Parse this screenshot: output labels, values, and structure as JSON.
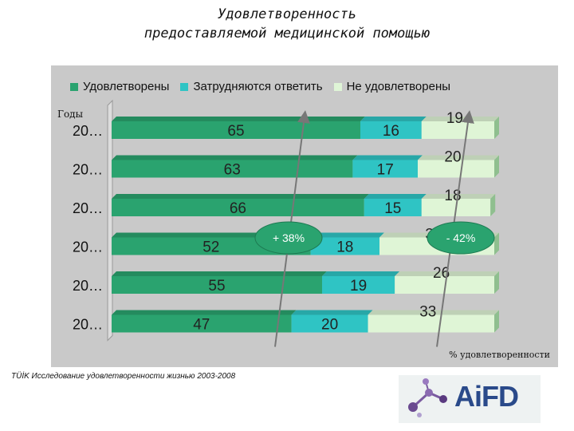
{
  "title_line1": "Удовлетворенность",
  "title_line2": "предоставляемой медицинской помощью",
  "footnote": "TÜİK Исследование удовлетворенности жизнью 2003-2008",
  "logo_text": "AiFD",
  "chart_data": {
    "type": "bar",
    "stacked": true,
    "orientation": "horizontal",
    "ylabel": "Годы",
    "xlabel": "% удовлетворенности",
    "categories": [
      "20…",
      "20…",
      "20…",
      "20…",
      "20…",
      "20…"
    ],
    "series": [
      {
        "name": "Удовлетворены",
        "values": [
          65,
          63,
          66,
          52,
          55,
          47
        ],
        "color": "#2aa36f"
      },
      {
        "name": "Затрудняются ответить",
        "values": [
          16,
          17,
          15,
          18,
          19,
          20
        ],
        "color": "#2fc4c4"
      },
      {
        "name": "Не удовлетворены",
        "values": [
          19,
          20,
          18,
          30,
          26,
          33
        ],
        "color": "#dff5d6"
      }
    ],
    "xlim": [
      0,
      100
    ],
    "legend": "top",
    "annotations": [
      {
        "text": "+ 38%",
        "color": "#2aa36f"
      },
      {
        "text": "- 42%",
        "color": "#2aa36f"
      }
    ]
  }
}
